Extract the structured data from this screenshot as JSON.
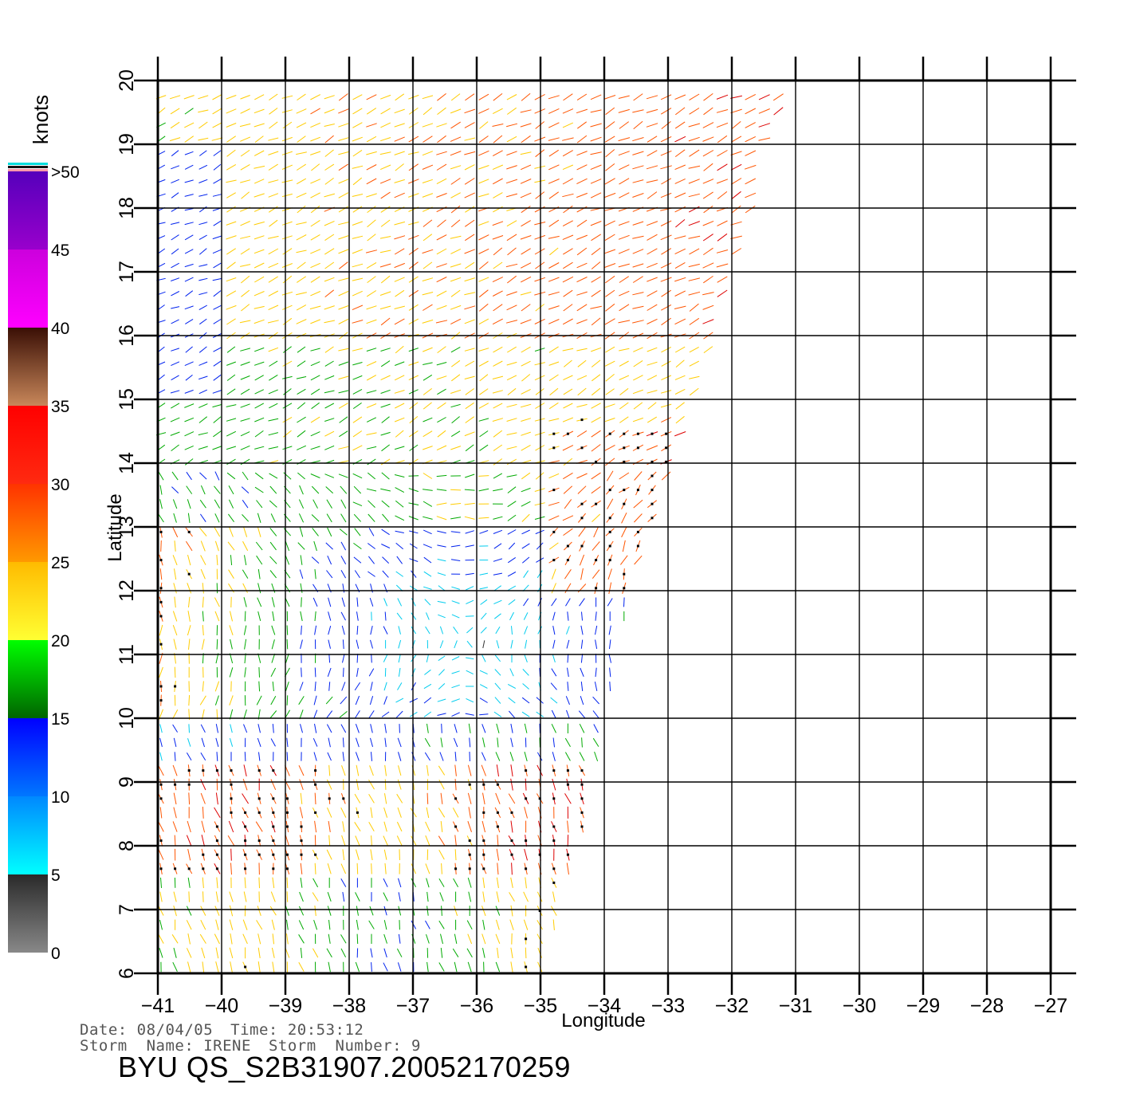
{
  "map": {
    "xlabel": "Longitude",
    "ylabel": "Latitude",
    "lon_ticks": [
      "-41",
      "-40",
      "-39",
      "-38",
      "-37",
      "-36",
      "-35",
      "-34",
      "-33",
      "-32",
      "-31",
      "-30",
      "-29",
      "-28",
      "-27"
    ],
    "lat_ticks": [
      "6",
      "7",
      "8",
      "9",
      "10",
      "11",
      "12",
      "13",
      "14",
      "15",
      "16",
      "17",
      "18",
      "19",
      "20"
    ],
    "lon_range": [
      -41,
      -27
    ],
    "lat_range": [
      6,
      20
    ],
    "swath_east_edge": [
      [
        6,
        -35.0
      ],
      [
        8,
        -34.4
      ],
      [
        10,
        -34.0
      ],
      [
        12,
        -33.6
      ],
      [
        14,
        -32.9
      ],
      [
        15,
        -32.6
      ],
      [
        16,
        -32.3
      ],
      [
        17,
        -32.0
      ],
      [
        18,
        -31.7
      ],
      [
        19,
        -31.5
      ],
      [
        20,
        -31.0
      ]
    ],
    "gridlines": true,
    "field": "QuikSCAT wind vectors (barbs) colored by speed"
  },
  "legend": {
    "title": "knots",
    "labels": [
      "0",
      "5",
      "10",
      "15",
      "20",
      "25",
      "30",
      "35",
      "40",
      "45",
      ">50"
    ],
    "bands": [
      {
        "from": 0,
        "to": 5,
        "colors": [
          "#888888",
          "#2a2a2a"
        ]
      },
      {
        "from": 5,
        "to": 10,
        "colors": [
          "#00ffff",
          "#0088ff"
        ]
      },
      {
        "from": 10,
        "to": 15,
        "colors": [
          "#0077ff",
          "#0000ff"
        ]
      },
      {
        "from": 15,
        "to": 20,
        "colors": [
          "#006400",
          "#00ff00"
        ]
      },
      {
        "from": 20,
        "to": 25,
        "colors": [
          "#ffff33",
          "#ffbb00"
        ]
      },
      {
        "from": 25,
        "to": 30,
        "colors": [
          "#ff9900",
          "#ff3300"
        ]
      },
      {
        "from": 30,
        "to": 35,
        "colors": [
          "#ff2a10",
          "#ff0000"
        ]
      },
      {
        "from": 35,
        "to": 40,
        "colors": [
          "#c8875a",
          "#3a0f05"
        ]
      },
      {
        "from": 40,
        "to": 45,
        "colors": [
          "#ff00ff",
          "#cc00dd"
        ]
      },
      {
        "from": 45,
        "to": 50,
        "colors": [
          "#9900cc",
          "#5500bb"
        ]
      }
    ],
    "cap_colors": [
      "#ff99aa",
      "#111111",
      "#00dddd"
    ]
  },
  "info": {
    "date_label": "Date:",
    "date": "08/04/05",
    "time_label": "Time:",
    "time": "20:53:12",
    "storm_name_label": "Storm  Name:",
    "storm_name": "IRENE",
    "storm_number_label": "Storm  Number:",
    "storm_number": "9",
    "product_id": "BYU  QS_S2B31907.20052170259"
  }
}
